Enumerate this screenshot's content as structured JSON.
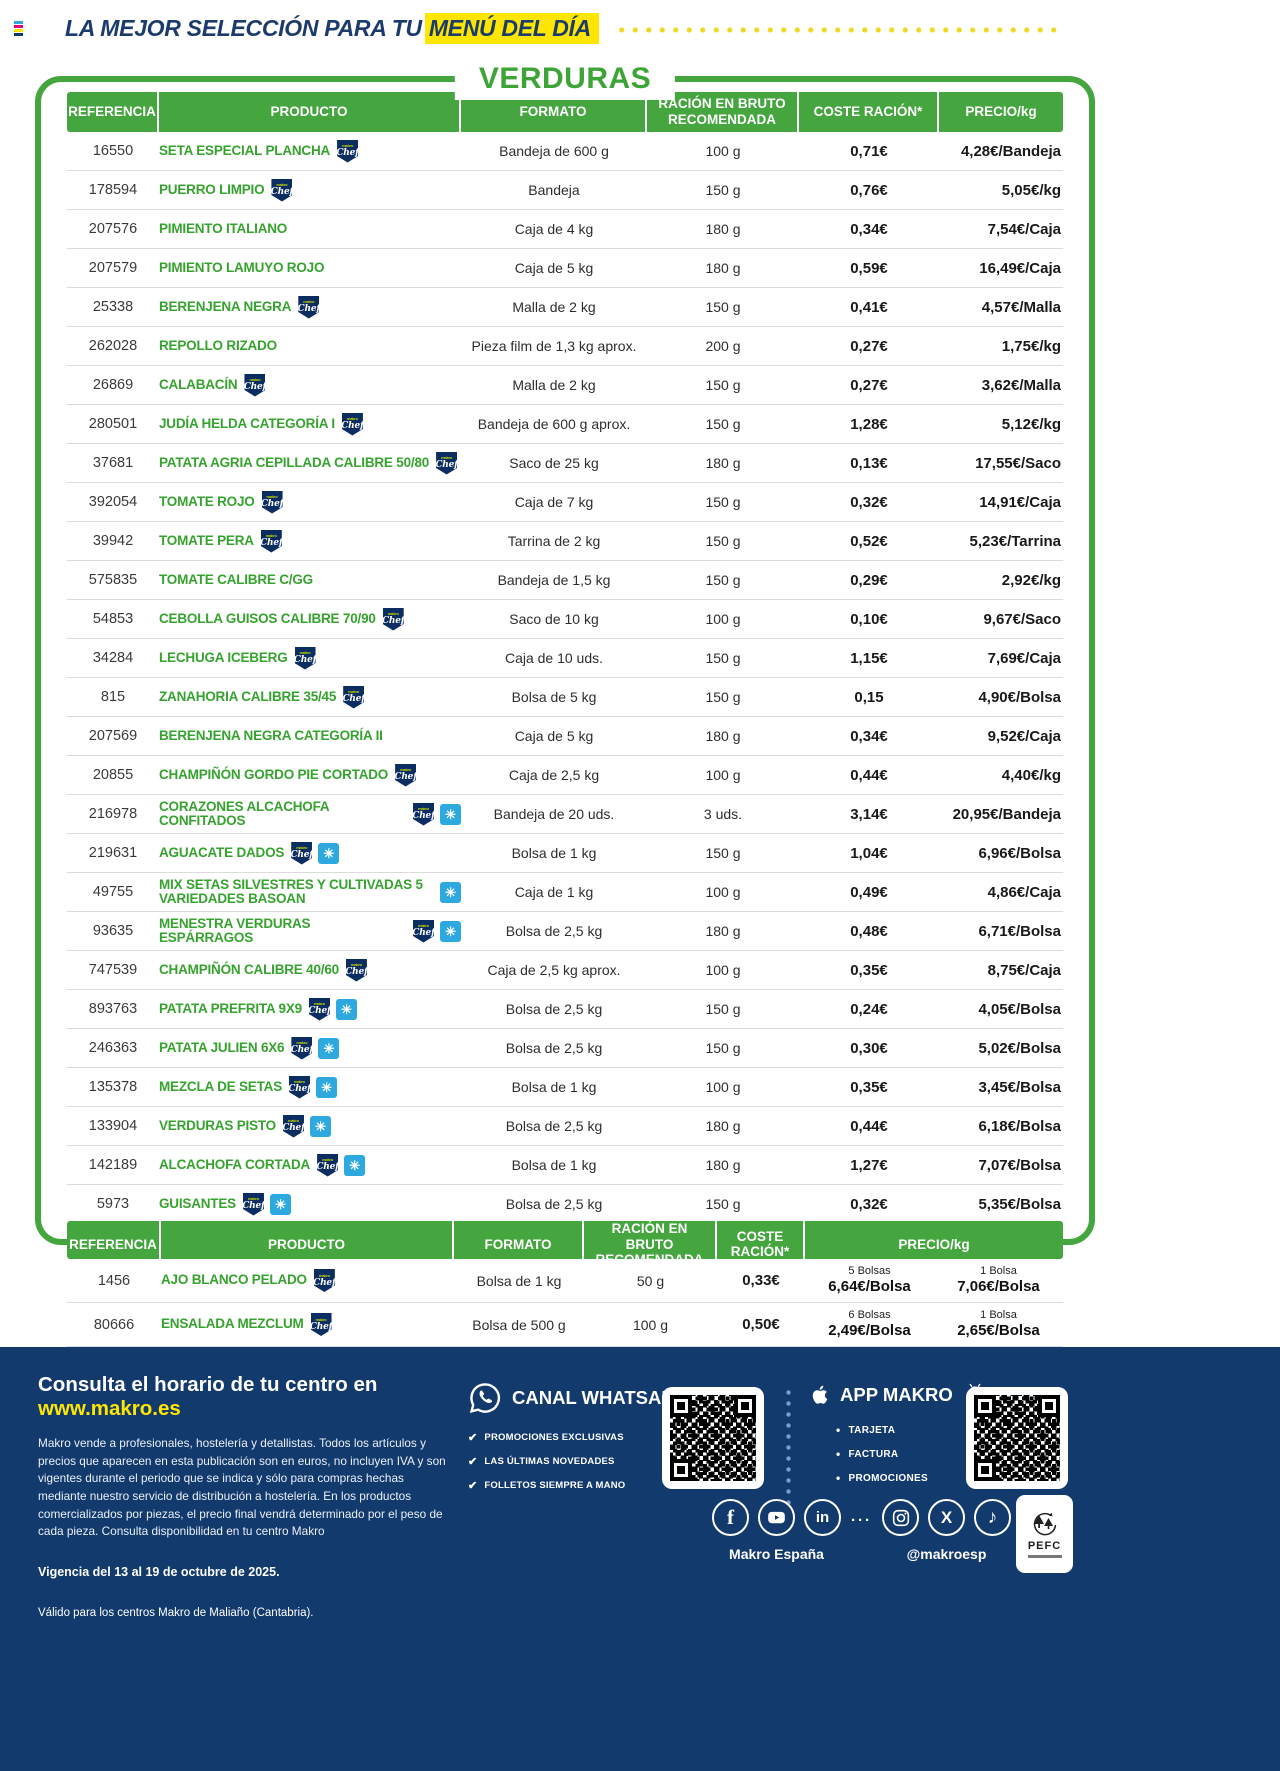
{
  "header": {
    "tagline_prefix": "LA MEJOR SELECCIÓN PARA TU",
    "tagline_highlight": "MENÚ DEL DÍA",
    "section_title": "VERDURAS"
  },
  "columns": {
    "referencia": "REFERENCIA",
    "producto": "PRODUCTO",
    "formato": "FORMATO",
    "racion1": "RACIÓN EN BRUTO",
    "racion2": "RECOMENDADA",
    "coste": "COSTE RACIÓN*",
    "precio": "PRECIO/kg"
  },
  "table": {
    "rows": [
      {
        "ref": "16550",
        "name": "SETA ESPECIAL PLANCHA",
        "badges": [
          "chef"
        ],
        "formato": "Bandeja de 600 g",
        "racion": "100 g",
        "coste": "0,71€",
        "precio": "4,28€/Bandeja"
      },
      {
        "ref": "178594",
        "name": "PUERRO LIMPIO",
        "badges": [
          "chef"
        ],
        "formato": "Bandeja",
        "racion": "150 g",
        "coste": "0,76€",
        "precio": "5,05€/kg"
      },
      {
        "ref": "207576",
        "name": "PIMIENTO ITALIANO",
        "badges": [],
        "formato": "Caja de 4 kg",
        "racion": "180 g",
        "coste": "0,34€",
        "precio": "7,54€/Caja"
      },
      {
        "ref": "207579",
        "name": "PIMIENTO LAMUYO ROJO",
        "badges": [],
        "formato": "Caja de 5 kg",
        "racion": "180 g",
        "coste": "0,59€",
        "precio": "16,49€/Caja"
      },
      {
        "ref": "25338",
        "name": "BERENJENA NEGRA",
        "badges": [
          "chef"
        ],
        "formato": "Malla de 2 kg",
        "racion": "150 g",
        "coste": "0,41€",
        "precio": "4,57€/Malla"
      },
      {
        "ref": "262028",
        "name": "REPOLLO RIZADO",
        "badges": [],
        "formato": "Pieza film de 1,3 kg aprox.",
        "racion": "200 g",
        "coste": "0,27€",
        "precio": "1,75€/kg"
      },
      {
        "ref": "26869",
        "name": "CALABACÍN",
        "badges": [
          "chef"
        ],
        "formato": "Malla de 2 kg",
        "racion": "150 g",
        "coste": "0,27€",
        "precio": "3,62€/Malla"
      },
      {
        "ref": "280501",
        "name": "JUDÍA HELDA CATEGORÍA I",
        "badges": [
          "chef"
        ],
        "formato": "Bandeja de 600 g aprox.",
        "racion": "150 g",
        "coste": "1,28€",
        "precio": "5,12€/kg"
      },
      {
        "ref": "37681",
        "name": "PATATA AGRIA CEPILLADA CALIBRE 50/80",
        "badges": [
          "chef"
        ],
        "formato": "Saco de 25 kg",
        "racion": "180 g",
        "coste": "0,13€",
        "precio": "17,55€/Saco"
      },
      {
        "ref": "392054",
        "name": "TOMATE ROJO",
        "badges": [
          "chef"
        ],
        "formato": "Caja de 7 kg",
        "racion": "150 g",
        "coste": "0,32€",
        "precio": "14,91€/Caja"
      },
      {
        "ref": "39942",
        "name": "TOMATE PERA",
        "badges": [
          "chef"
        ],
        "formato": "Tarrina de 2 kg",
        "racion": "150 g",
        "coste": "0,52€",
        "precio": "5,23€/Tarrina"
      },
      {
        "ref": "575835",
        "name": "TOMATE CALIBRE C/GG",
        "badges": [],
        "formato": "Bandeja de 1,5 kg",
        "racion": "150 g",
        "coste": "0,29€",
        "precio": "2,92€/kg"
      },
      {
        "ref": "54853",
        "name": "CEBOLLA GUISOS CALIBRE 70/90",
        "badges": [
          "chef"
        ],
        "formato": "Saco de 10 kg",
        "racion": "100 g",
        "coste": "0,10€",
        "precio": "9,67€/Saco"
      },
      {
        "ref": "34284",
        "name": "LECHUGA ICEBERG",
        "badges": [
          "chef"
        ],
        "formato": "Caja de 10 uds.",
        "racion": "150 g",
        "coste": "1,15€",
        "precio": "7,69€/Caja"
      },
      {
        "ref": "815",
        "name": "ZANAHORIA CALIBRE 35/45",
        "badges": [
          "chef"
        ],
        "formato": "Bolsa de 5 kg",
        "racion": "150 g",
        "coste": "0,15",
        "precio": "4,90€/Bolsa"
      },
      {
        "ref": "207569",
        "name": "BERENJENA NEGRA CATEGORÍA II",
        "badges": [],
        "formato": "Caja de 5 kg",
        "racion": "180 g",
        "coste": "0,34€",
        "precio": "9,52€/Caja"
      },
      {
        "ref": "20855",
        "name": "CHAMPIÑÓN GORDO PIE CORTADO",
        "badges": [
          "chef"
        ],
        "formato": "Caja de 2,5 kg",
        "racion": "100 g",
        "coste": "0,44€",
        "precio": "4,40€/kg"
      },
      {
        "ref": "216978",
        "name": "CORAZONES ALCACHOFA CONFITADOS",
        "badges": [
          "chef",
          "frozen"
        ],
        "formato": "Bandeja de 20 uds.",
        "racion": "3 uds.",
        "coste": "3,14€",
        "precio": "20,95€/Bandeja"
      },
      {
        "ref": "219631",
        "name": "AGUACATE DADOS",
        "badges": [
          "chef",
          "frozen"
        ],
        "formato": "Bolsa de 1 kg",
        "racion": "150 g",
        "coste": "1,04€",
        "precio": "6,96€/Bolsa"
      },
      {
        "ref": "49755",
        "name": "MIX SETAS SILVESTRES Y CULTIVADAS 5 VARIEDADES BASOAN",
        "badges": [
          "frozen"
        ],
        "formato": "Caja de 1 kg",
        "racion": "100 g",
        "coste": "0,49€",
        "precio": "4,86€/Caja"
      },
      {
        "ref": "93635",
        "name": "MENESTRA VERDURAS ESPÁRRAGOS",
        "badges": [
          "chef",
          "frozen"
        ],
        "formato": "Bolsa de 2,5 kg",
        "racion": "180 g",
        "coste": "0,48€",
        "precio": "6,71€/Bolsa"
      },
      {
        "ref": "747539",
        "name": "CHAMPIÑÓN CALIBRE 40/60",
        "badges": [
          "chef"
        ],
        "formato": "Caja de 2,5 kg aprox.",
        "racion": "100 g",
        "coste": "0,35€",
        "precio": "8,75€/Caja"
      },
      {
        "ref": "893763",
        "name": "PATATA PREFRITA 9X9",
        "badges": [
          "chef",
          "frozen"
        ],
        "formato": "Bolsa de 2,5 kg",
        "racion": "150 g",
        "coste": "0,24€",
        "precio": "4,05€/Bolsa"
      },
      {
        "ref": "246363",
        "name": "PATATA JULIEN 6X6",
        "badges": [
          "chef",
          "frozen"
        ],
        "formato": "Bolsa de 2,5 kg",
        "racion": "150 g",
        "coste": "0,30€",
        "precio": "5,02€/Bolsa"
      },
      {
        "ref": "135378",
        "name": "MEZCLA DE SETAS",
        "badges": [
          "chef",
          "frozen"
        ],
        "formato": "Bolsa de 1 kg",
        "racion": "100 g",
        "coste": "0,35€",
        "precio": "3,45€/Bolsa"
      },
      {
        "ref": "133904",
        "name": "VERDURAS PISTO",
        "badges": [
          "chef",
          "frozen"
        ],
        "formato": "Bolsa de 2,5 kg",
        "racion": "180 g",
        "coste": "0,44€",
        "precio": "6,18€/Bolsa"
      },
      {
        "ref": "142189",
        "name": "ALCACHOFA CORTADA",
        "badges": [
          "chef",
          "frozen"
        ],
        "formato": "Bolsa de 1 kg",
        "racion": "180 g",
        "coste": "1,27€",
        "precio": "7,07€/Bolsa"
      },
      {
        "ref": "5973",
        "name": "GUISANTES",
        "badges": [
          "chef",
          "frozen"
        ],
        "formato": "Bolsa de 2,5 kg",
        "racion": "150 g",
        "coste": "0,32€",
        "precio": "5,35€/Bolsa"
      }
    ]
  },
  "table2": {
    "rows": [
      {
        "ref": "1456",
        "name": "AJO BLANCO PELADO",
        "badges": [
          "chef"
        ],
        "formato": "Bolsa de 1 kg",
        "racion": "50 g",
        "coste": "0,33€",
        "prices": [
          {
            "qty": "5 Bolsas",
            "price": "6,64€/Bolsa"
          },
          {
            "qty": "1 Bolsa",
            "price": "7,06€/Bolsa"
          }
        ]
      },
      {
        "ref": "80666",
        "name": "ENSALADA MEZCLUM",
        "badges": [
          "chef"
        ],
        "formato": "Bolsa de 500 g",
        "racion": "100 g",
        "coste": "0,50€",
        "prices": [
          {
            "qty": "6 Bolsas",
            "price": "2,49€/Bolsa"
          },
          {
            "qty": "1 Bolsa",
            "price": "2,65€/Bolsa"
          }
        ]
      }
    ]
  },
  "footer": {
    "schedule_prefix": "Consulta el horario de tu centro en ",
    "schedule_link": "www.makro.es",
    "legal": "Makro vende a profesionales, hostelería y detallistas. Todos los artículos y precios que aparecen en esta publicación son en euros, no incluyen IVA y son vigentes durante el periodo que se indica y sólo para compras hechas mediante nuestro servicio de distribución a hostelería. En los productos comercializados por piezas, el precio final vendrá determinado por el peso de cada pieza. Consulta disponibilidad en tu centro Makro",
    "validity": "Vigencia del 13 al 19 de octubre de 2025.",
    "centers": "Válido para los centros Makro de Maliaño (Cantabria).",
    "whatsapp_title": "CANAL WHATSAPP",
    "whatsapp_items": [
      "PROMOCIONES EXCLUSIVAS",
      "LAS ÚLTIMAS NOVEDADES",
      "FOLLETOS SIEMPRE A MANO"
    ],
    "app_title": "APP MAKRO",
    "app_items": [
      "TARJETA",
      "FACTURA",
      "PROMOCIONES"
    ],
    "social_left_label": "Makro España",
    "social_right_label": "@makroesp",
    "pefc_label": "PEFC"
  },
  "icons": {
    "chef_badge_brand": "makro",
    "chef_badge_text": "Chef",
    "frozen_glyph": "✳",
    "check_glyph": "✔",
    "bullet_glyph": "•"
  },
  "colors": {
    "green": "#45A53E",
    "product_green": "#36A32F",
    "navy": "#1C3B6D",
    "footer_navy": "#133A6D",
    "chef_navy": "#0C2D62",
    "frozen_blue": "#2EA9E0",
    "highlight_yellow": "#FFE600"
  }
}
